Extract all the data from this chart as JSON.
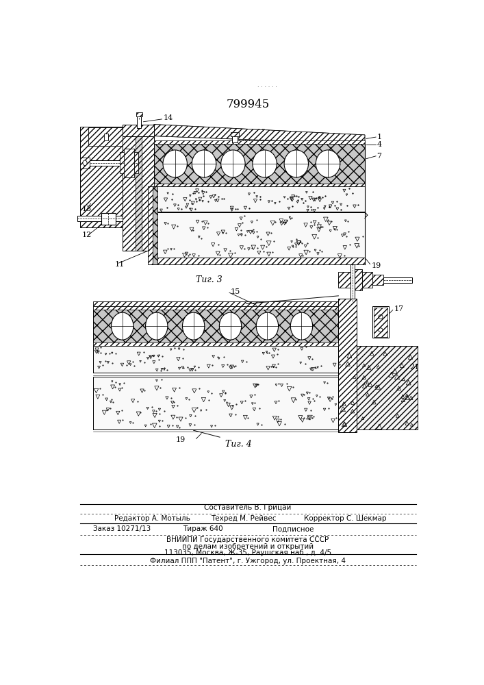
{
  "title_number": "799945",
  "fig3_label": "Τиг. 3",
  "fig4_label": "Τиг. 4",
  "bg_color": "#ffffff",
  "drawing_color": "#000000"
}
